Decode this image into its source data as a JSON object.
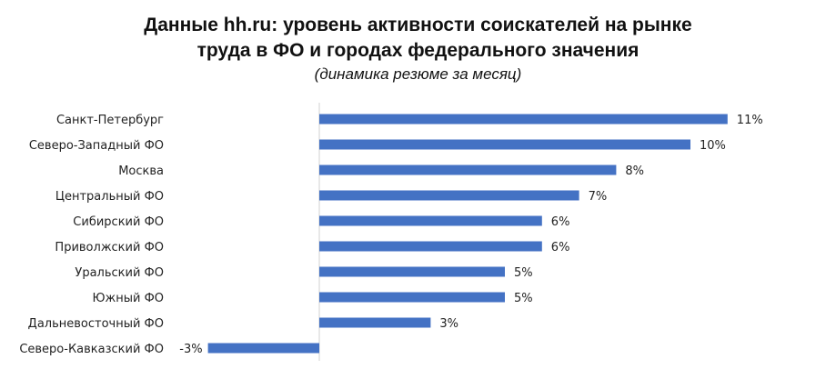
{
  "chart_data": {
    "type": "bar",
    "orientation": "horizontal",
    "title_lines": [
      "Данные hh.ru: уровень активности соискателей на рынке",
      "труда в ФО и городах федерального значения"
    ],
    "subtitle": "(динамика резюме за месяц)",
    "categories": [
      "Санкт-Петербург",
      "Северо-Западный ФО",
      "Москва",
      "Центральный ФО",
      "Сибирский ФО",
      "Приволжский ФО",
      "Уральский ФО",
      "Южный ФО",
      "Дальневосточный ФО",
      "Северо-Кавказский ФО"
    ],
    "values": [
      11,
      10,
      8,
      7,
      6,
      6,
      5,
      5,
      3,
      -3
    ],
    "value_labels": [
      "11%",
      "10%",
      "8%",
      "7%",
      "6%",
      "6%",
      "5%",
      "5%",
      "3%",
      "-3%"
    ],
    "unit": "%",
    "bar_color": "#4472C4",
    "grid": false,
    "legend": "none"
  }
}
